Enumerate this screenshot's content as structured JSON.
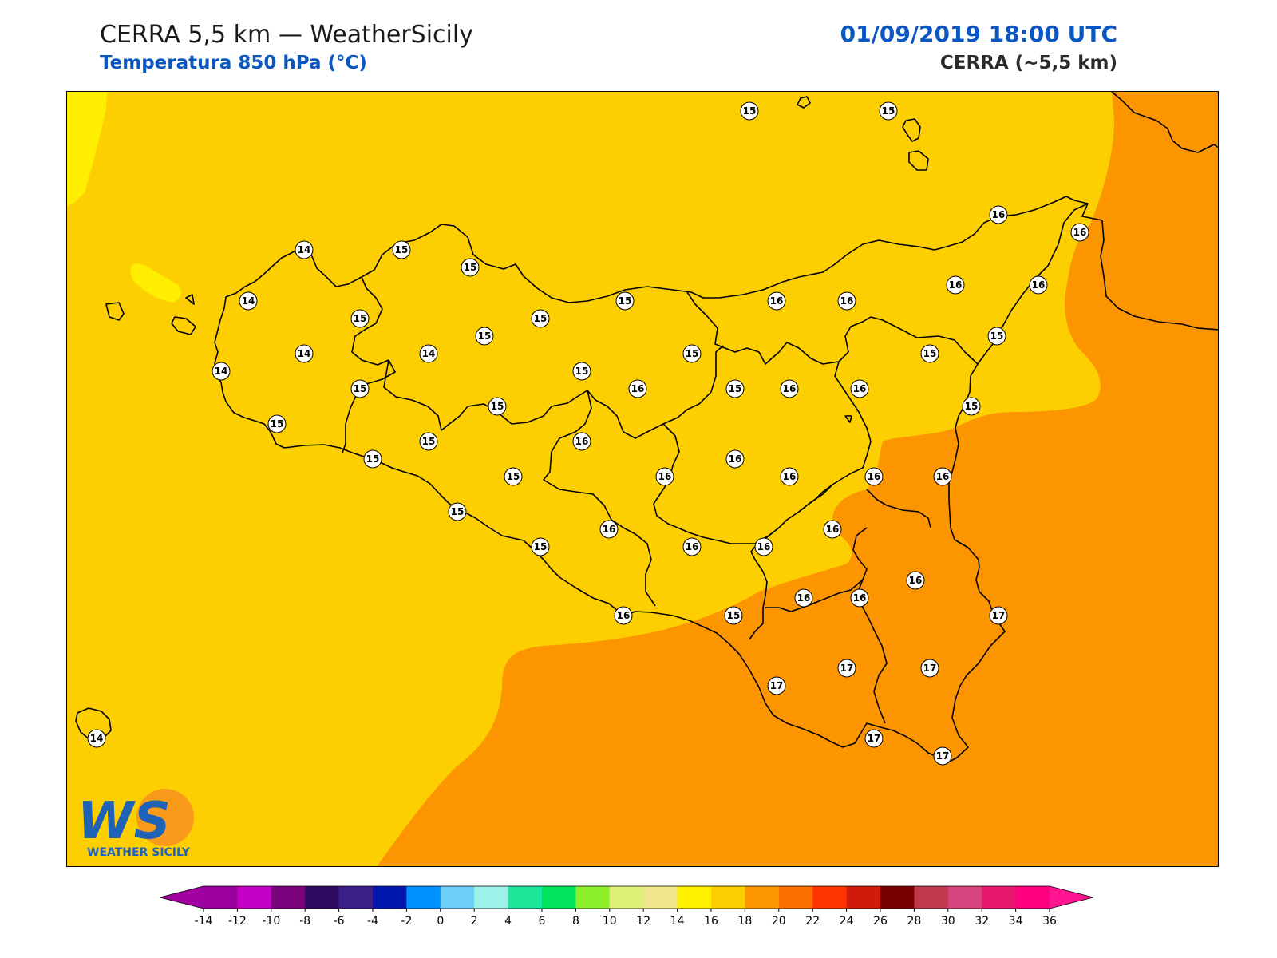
{
  "header": {
    "title": "CERRA 5,5 km — WeatherSicily",
    "subtitle": "Temperatura 850 hPa (°C)",
    "datetime": "01/09/2019 18:00 UTC",
    "model": "CERRA (~5,5 km)"
  },
  "colors": {
    "title_blue": "#0b57c2",
    "fill_14_16": "#fdcf00",
    "fill_12_14": "#ffee00",
    "fill_16_18": "#fd9500",
    "coast": "#000000"
  },
  "colorbar": {
    "unit": "°C",
    "extend": "both",
    "ticks": [
      -14,
      -12,
      -10,
      -8,
      -6,
      -4,
      -2,
      0,
      2,
      4,
      6,
      8,
      10,
      12,
      14,
      16,
      18,
      20,
      22,
      24,
      26,
      28,
      30,
      32,
      34,
      36
    ],
    "colors": [
      "#9c009c",
      "#c500c5",
      "#7b007b",
      "#2e0a5e",
      "#3d1f8a",
      "#0018b0",
      "#0090ff",
      "#6ccff6",
      "#9cf2e8",
      "#1de59a",
      "#00e55c",
      "#8ef02a",
      "#dff078",
      "#f0e68c",
      "#fff000",
      "#fdcf00",
      "#fd9500",
      "#fd7000",
      "#ff3300",
      "#d01a0a",
      "#7a0000",
      "#bf3a4e",
      "#d6447e",
      "#e8176c",
      "#ff007f",
      "#ff1493"
    ],
    "under_color": "#a000a0",
    "over_color": "#ff1493"
  },
  "logo": {
    "letters": "WS",
    "caption": "WEATHER SICILY"
  },
  "stations": [
    {
      "value": "15"
    },
    {
      "value": "15"
    },
    {
      "value": "16"
    },
    {
      "value": "16"
    },
    {
      "value": "14"
    },
    {
      "value": "15"
    },
    {
      "value": "15"
    },
    {
      "value": "14"
    },
    {
      "value": "15"
    },
    {
      "value": "15"
    },
    {
      "value": "15"
    },
    {
      "value": "16"
    },
    {
      "value": "16"
    },
    {
      "value": "16"
    },
    {
      "value": "15"
    },
    {
      "value": "16"
    },
    {
      "value": "14"
    },
    {
      "value": "14"
    },
    {
      "value": "15"
    },
    {
      "value": "15"
    },
    {
      "value": "15"
    },
    {
      "value": "15"
    },
    {
      "value": "15"
    },
    {
      "value": "16"
    },
    {
      "value": "15"
    },
    {
      "value": "14"
    },
    {
      "value": "15"
    },
    {
      "value": "15"
    },
    {
      "value": "15"
    },
    {
      "value": "16"
    },
    {
      "value": "16"
    },
    {
      "value": "16"
    },
    {
      "value": "15"
    },
    {
      "value": "15"
    },
    {
      "value": "15"
    },
    {
      "value": "16"
    },
    {
      "value": "16"
    },
    {
      "value": "15"
    },
    {
      "value": "15"
    },
    {
      "value": "16"
    },
    {
      "value": "16"
    },
    {
      "value": "16"
    },
    {
      "value": "16"
    },
    {
      "value": "15"
    },
    {
      "value": "16"
    },
    {
      "value": "16"
    },
    {
      "value": "16"
    },
    {
      "value": "16"
    },
    {
      "value": "16"
    },
    {
      "value": "16"
    },
    {
      "value": "16"
    },
    {
      "value": "17"
    },
    {
      "value": "17"
    },
    {
      "value": "17"
    },
    {
      "value": "17"
    },
    {
      "value": "17"
    },
    {
      "value": "17"
    },
    {
      "value": "14"
    }
  ]
}
